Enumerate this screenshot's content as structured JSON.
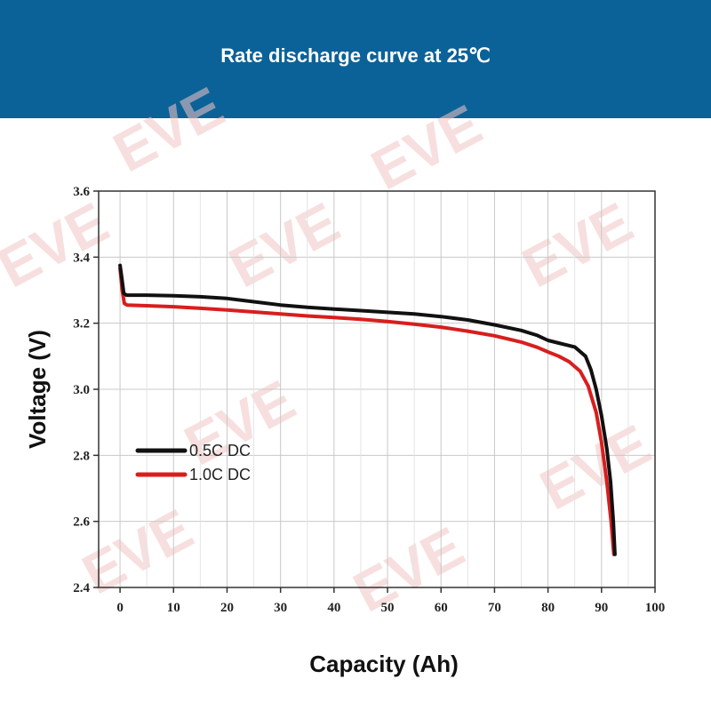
{
  "page": {
    "title": "Rate discharge curve at 25℃"
  },
  "watermark": {
    "text": "EVE",
    "color": "#e05a5a"
  },
  "colors": {
    "header_bg": "#0b6298",
    "grid": "#c8c8c8",
    "axis": "#333333"
  },
  "chart_data": {
    "type": "line",
    "title": "Rate discharge curve at 25℃",
    "xlabel": "Capacity (Ah)",
    "ylabel": "Voltage (V)",
    "xlim": [
      -4,
      100
    ],
    "ylim": [
      2.4,
      3.6
    ],
    "xticks": [
      0,
      10,
      20,
      30,
      40,
      50,
      60,
      70,
      80,
      90,
      100
    ],
    "yticks": [
      2.4,
      2.6,
      2.8,
      3.0,
      3.2,
      3.4,
      3.6
    ],
    "xtick_labels": [
      "0",
      "10",
      "20",
      "30",
      "40",
      "50",
      "60",
      "70",
      "80",
      "90",
      "100"
    ],
    "ytick_labels": [
      "2.4",
      "2.6",
      "2.8",
      "3.0",
      "3.2",
      "3.4",
      "3.6"
    ],
    "grid": true,
    "legend_position": "center-left",
    "series": [
      {
        "name": "0.5C DC",
        "color": "#111111",
        "x": [
          0,
          0.3,
          0.7,
          1.2,
          5,
          10,
          15,
          20,
          25,
          30,
          35,
          40,
          45,
          50,
          55,
          60,
          65,
          70,
          75,
          78,
          80,
          82,
          85,
          87,
          88,
          89,
          90,
          91,
          91.7,
          92.2,
          92.5
        ],
        "y": [
          3.375,
          3.34,
          3.29,
          3.285,
          3.285,
          3.283,
          3.28,
          3.275,
          3.265,
          3.255,
          3.248,
          3.243,
          3.238,
          3.233,
          3.228,
          3.22,
          3.21,
          3.195,
          3.178,
          3.163,
          3.148,
          3.14,
          3.128,
          3.1,
          3.06,
          3.0,
          2.92,
          2.82,
          2.72,
          2.6,
          2.5
        ]
      },
      {
        "name": "1.0C DC",
        "color": "#d81e1e",
        "x": [
          0,
          0.4,
          0.8,
          1.3,
          5,
          10,
          15,
          20,
          25,
          30,
          35,
          40,
          45,
          50,
          55,
          60,
          65,
          70,
          75,
          78,
          80,
          82,
          84,
          86,
          87.5,
          89,
          90,
          91,
          91.8,
          92.3
        ],
        "y": [
          3.365,
          3.3,
          3.26,
          3.255,
          3.253,
          3.25,
          3.245,
          3.24,
          3.234,
          3.228,
          3.222,
          3.217,
          3.212,
          3.205,
          3.197,
          3.188,
          3.176,
          3.162,
          3.143,
          3.127,
          3.113,
          3.1,
          3.083,
          3.055,
          3.01,
          2.93,
          2.84,
          2.72,
          2.6,
          2.5
        ]
      }
    ]
  }
}
